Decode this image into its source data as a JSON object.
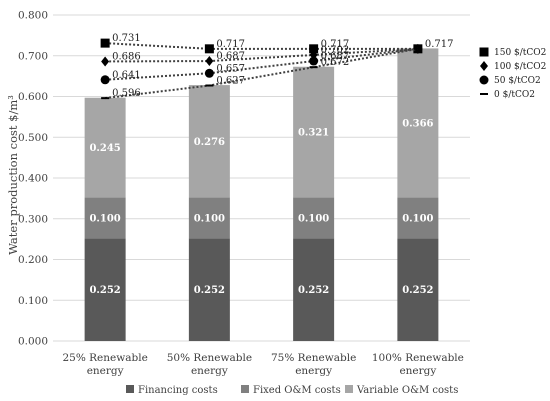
{
  "chart_data": {
    "type": "bar",
    "stacked": true,
    "title": "",
    "xlabel": "",
    "ylabel": "Water production cost $/m³",
    "ylim": [
      0,
      0.8
    ],
    "ytick_step": 0.1,
    "yticks": [
      "0.000",
      "0.100",
      "0.200",
      "0.300",
      "0.400",
      "0.500",
      "0.600",
      "0.700",
      "0.800"
    ],
    "grid": true,
    "categories": [
      [
        "25% Renewable",
        "energy"
      ],
      [
        "50% Renewable",
        "energy"
      ],
      [
        "75% Renewable",
        "energy"
      ],
      [
        "100% Renewable",
        "energy"
      ]
    ],
    "series": [
      {
        "name": "Financing costs",
        "values": [
          0.252,
          0.252,
          0.252,
          0.252
        ],
        "labels": [
          "0.252",
          "0.252",
          "0.252",
          "0.252"
        ],
        "color": "#595959"
      },
      {
        "name": "Fixed O&M costs",
        "values": [
          0.1,
          0.1,
          0.1,
          0.1
        ],
        "labels": [
          "0.100",
          "0.100",
          "0.100",
          "0.100"
        ],
        "color": "#808080"
      },
      {
        "name": "Variable O&M costs",
        "values": [
          0.245,
          0.276,
          0.321,
          0.366
        ],
        "labels": [
          "0.245",
          "0.276",
          "0.321",
          "0.366"
        ],
        "color": "#a6a6a6"
      }
    ],
    "line_series": [
      {
        "name": "150 $/tCO2",
        "marker": "square",
        "values": [
          0.731,
          0.717,
          0.717,
          0.717
        ],
        "labels": [
          "0.731",
          "0.717",
          "0.717",
          "0.717"
        ]
      },
      {
        "name": "100 $/tCO2",
        "marker": "diamond",
        "values": [
          0.686,
          0.687,
          0.702,
          0.717
        ],
        "labels": [
          "0.686",
          "0.687",
          "0.702",
          ""
        ]
      },
      {
        "name": "50 $/tCO2",
        "marker": "circle",
        "values": [
          0.641,
          0.657,
          0.687,
          0.717
        ],
        "labels": [
          "0.641",
          "0.657",
          "0.687",
          ""
        ]
      },
      {
        "name": "0 $/tCO2",
        "marker": "dash",
        "values": [
          0.596,
          0.627,
          0.672,
          0.717
        ],
        "labels": [
          "0.596",
          "0.627",
          "0.672",
          ""
        ]
      }
    ],
    "legend_position": "right",
    "bar_legend_position": "bottom"
  }
}
